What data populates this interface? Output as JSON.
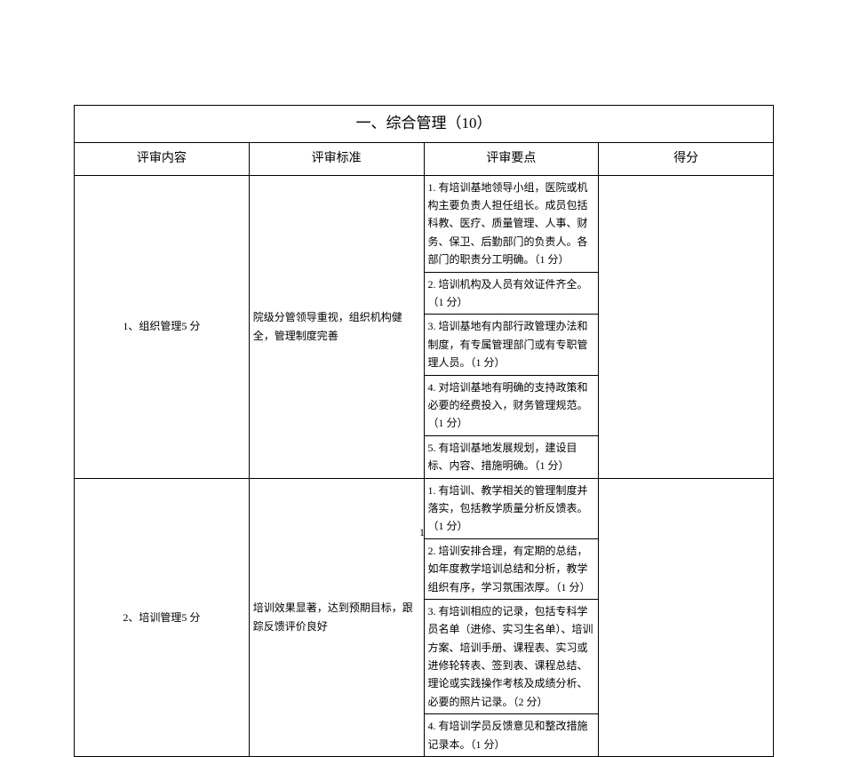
{
  "title": "一、综合管理（10）",
  "headers": {
    "content": "评审内容",
    "standard": "评审标准",
    "points": "评审要点",
    "score": "得分"
  },
  "sections": [
    {
      "content_label": "1、组织管理5 分",
      "standard": "院级分管领导重视，组织机构健全，管理制度完善",
      "points": [
        "1. 有培训基地领导小组，医院或机构主要负责人担任组长。成员包括科教、医疗、质量管理、人事、财务、保卫、后勤部门的负责人。各部门的职责分工明确。（1 分）",
        "2. 培训机构及人员有效证件齐全。（1 分）",
        "3. 培训基地有内部行政管理办法和制度，有专属管理部门或有专职管理人员。（1 分）",
        "4. 对培训基地有明确的支持政策和必要的经费投入，财务管理规范。（1 分）",
        "5. 有培训基地发展规划，建设目标、内容、措施明确。（1 分）"
      ]
    },
    {
      "content_label": "2、培训管理5 分",
      "standard": "培训效果显著，达到预期目标，跟踪反馈评价良好",
      "points": [
        "1. 有培训、教学相关的管理制度并落实，包括教学质量分析反馈表。（1 分）",
        "2. 培训安排合理，有定期的总结，如年度教学培训总结和分析，教学组织有序，学习氛围浓厚。（1 分）",
        "3. 有培训相应的记录，包括专科学员名单（进修、实习生名单）、培训方案、培训手册、课程表、实习或进修轮转表、签到表、课程总结、理论或实践操作考核及成绩分析、必要的照片记录。（2 分）",
        "4. 有培训学员反馈意见和整改措施记录本。（1 分）"
      ]
    }
  ],
  "pageNumber": "1"
}
